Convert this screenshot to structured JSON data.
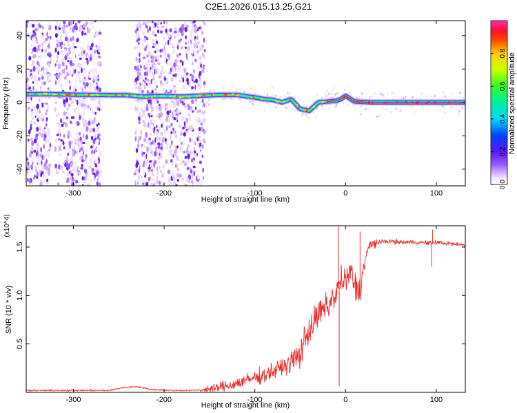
{
  "title": "C2E1.2026.015.13.25.G21",
  "chart_data": [
    {
      "type": "heatmap",
      "xlabel": "Height of straight line (km)",
      "ylabel": "Frequency (Hz)",
      "xlim": [
        -352,
        132
      ],
      "ylim": [
        -50,
        49
      ],
      "xticks": [
        -300,
        -200,
        -100,
        0,
        100
      ],
      "xtick_labels": [
        "-300",
        "-200",
        "-100",
        "0",
        "100"
      ],
      "yticks": [
        -40,
        -20,
        0,
        20,
        40
      ],
      "ytick_labels": [
        "-40",
        "-20",
        "0",
        "20",
        "40"
      ],
      "colorbar": {
        "label": "Normalized spectral amplitude",
        "range": [
          0,
          1
        ],
        "ticks": [
          0.0,
          0.2,
          0.4,
          0.6,
          0.8
        ],
        "tick_labels": [
          "0.0",
          "0.2",
          "0.4",
          "0.6",
          "0.8"
        ],
        "colormap": "rainbow (white-violet-blue-cyan-green-yellow-red-magenta)"
      },
      "ridge": {
        "x": [
          -352,
          -330,
          -310,
          -300,
          -280,
          -260,
          -240,
          -225,
          -200,
          -180,
          -160,
          -140,
          -120,
          -100,
          -90,
          -80,
          -70,
          -60,
          -50,
          -40,
          -30,
          -20,
          -10,
          -5,
          0,
          10,
          30,
          60,
          100,
          132
        ],
        "y": [
          5,
          5,
          4.8,
          4.6,
          4.5,
          4.4,
          4.3,
          3.5,
          3.8,
          3.5,
          4,
          4.5,
          4.5,
          3,
          2,
          1.5,
          0,
          2,
          -4,
          -5,
          0,
          0.5,
          1,
          2,
          4,
          0.5,
          0,
          0,
          0,
          0
        ]
      },
      "noise_regions_x": [
        [
          -352,
          -325
        ],
        [
          -320,
          -270
        ],
        [
          -232,
          -155
        ]
      ],
      "grid": false
    },
    {
      "type": "line",
      "xlabel": "Height of straight line (km)",
      "ylabel": "SNR (10 * v/v)",
      "y_multiplier": "(x10^4)",
      "xlim": [
        -352,
        132
      ],
      "ylim": [
        0,
        1.72
      ],
      "xticks": [
        -300,
        -200,
        -100,
        0,
        100
      ],
      "xtick_labels": [
        "-300",
        "-200",
        "-100",
        "0",
        "100"
      ],
      "yticks": [
        0.5,
        1.0,
        1.5
      ],
      "ytick_labels": [
        "0.5",
        "1.0",
        "1.5"
      ],
      "series": [
        {
          "color": "#ee2a2a",
          "x": [
            -352,
            -300,
            -260,
            -245,
            -230,
            -215,
            -190,
            -170,
            -150,
            -140,
            -125,
            -110,
            -100,
            -90,
            -80,
            -70,
            -60,
            -50,
            -45,
            -40,
            -35,
            -30,
            -25,
            -20,
            -15,
            -12,
            -9,
            -7,
            -5,
            -3,
            0,
            3,
            6,
            10,
            14,
            18,
            22,
            26,
            30,
            35,
            40,
            45,
            50,
            60,
            80,
            95,
            100,
            110,
            120,
            132
          ],
          "y": [
            0.02,
            0.02,
            0.02,
            0.05,
            0.06,
            0.03,
            0.02,
            0.02,
            0.03,
            0.05,
            0.08,
            0.12,
            0.15,
            0.18,
            0.22,
            0.26,
            0.3,
            0.4,
            0.55,
            0.65,
            0.72,
            0.8,
            0.85,
            0.88,
            0.95,
            1.0,
            1.05,
            1.1,
            1.2,
            1.1,
            1.15,
            1.2,
            1.25,
            1.1,
            1.05,
            1.15,
            1.4,
            1.5,
            1.53,
            1.55,
            1.55,
            1.56,
            1.56,
            1.55,
            1.55,
            1.54,
            1.55,
            1.54,
            1.53,
            1.52
          ]
        }
      ],
      "grid": false
    }
  ]
}
